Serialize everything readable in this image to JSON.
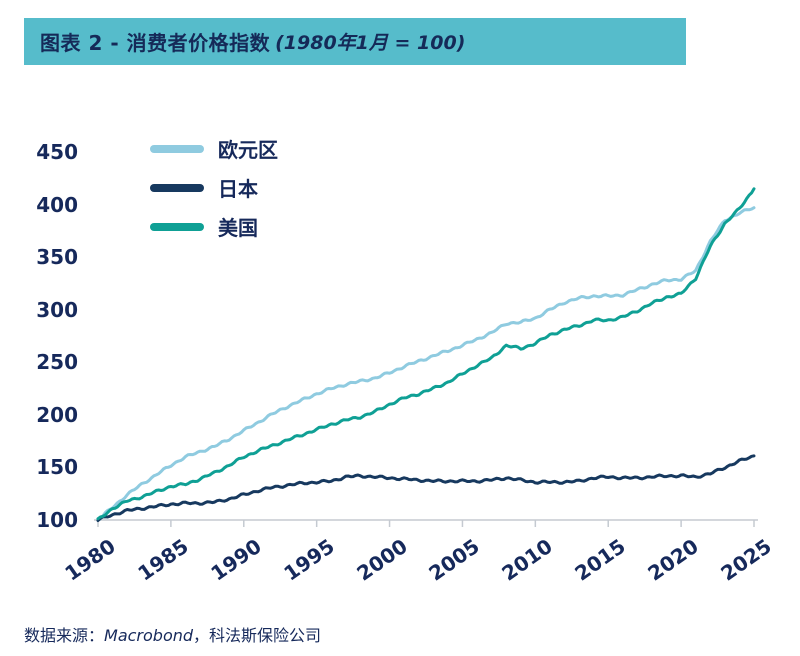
{
  "header": {
    "title_main": "图表 2 - 消费者价格指数",
    "title_paren": "(1980年1月 = 100)"
  },
  "source": {
    "prefix": "数据来源：",
    "vendor": "Macrobond",
    "suffix": "，科法斯保险公司"
  },
  "colors": {
    "banner": "#56bccb",
    "text_navy": "#16295b",
    "axis_gray": "#c5cad1"
  },
  "chart_data": {
    "type": "line",
    "title": "图表 2 - 消费者价格指数(1980年1月 = 100)",
    "xlabel": "",
    "ylabel": "",
    "x_range": [
      1980,
      2025
    ],
    "y_range": [
      100,
      450
    ],
    "y_ticks": [
      100,
      150,
      200,
      250,
      300,
      350,
      400,
      450
    ],
    "x_ticks": [
      1980,
      1985,
      1990,
      1995,
      2000,
      2005,
      2010,
      2015,
      2020,
      2025
    ],
    "grid": false,
    "legend_position": "top-left",
    "years": [
      1980,
      1981,
      1982,
      1983,
      1984,
      1985,
      1986,
      1987,
      1988,
      1989,
      1990,
      1991,
      1992,
      1993,
      1994,
      1995,
      1996,
      1997,
      1998,
      1999,
      2000,
      2001,
      2002,
      2003,
      2004,
      2005,
      2006,
      2007,
      2008,
      2009,
      2010,
      2011,
      2012,
      2013,
      2014,
      2015,
      2016,
      2017,
      2018,
      2019,
      2020,
      2021,
      2022,
      2023,
      2024,
      2025
    ],
    "series": [
      {
        "key": "eurozone",
        "name": "欧元区",
        "color": "#8fcbe0",
        "values": [
          100,
          112,
          124,
          134,
          143,
          152,
          160,
          165,
          170,
          177,
          185,
          193,
          201,
          208,
          214,
          220,
          225,
          229,
          232,
          235,
          240,
          246,
          251,
          256,
          261,
          266,
          272,
          278,
          287,
          288,
          292,
          300,
          307,
          311,
          313,
          313,
          314,
          319,
          324,
          328,
          329,
          337,
          365,
          385,
          392,
          397
        ]
      },
      {
        "key": "japan",
        "name": "日本",
        "color": "#17395f",
        "values": [
          100,
          105,
          109,
          111,
          113,
          115,
          116,
          116,
          117,
          120,
          124,
          128,
          131,
          133,
          135,
          136,
          137,
          141,
          142,
          141,
          140,
          139,
          138,
          137,
          137,
          137,
          137,
          138,
          140,
          138,
          136,
          136,
          136,
          137,
          140,
          141,
          140,
          140,
          141,
          142,
          142,
          141,
          144,
          150,
          156,
          161
        ]
      },
      {
        "key": "us",
        "name": "美国",
        "color": "#0fa095",
        "values": [
          100,
          111,
          118,
          122,
          127,
          132,
          134,
          139,
          145,
          152,
          160,
          166,
          171,
          176,
          181,
          186,
          191,
          195,
          198,
          203,
          210,
          216,
          220,
          225,
          231,
          239,
          247,
          254,
          266,
          263,
          268,
          276,
          281,
          285,
          290,
          290,
          293,
          299,
          306,
          312,
          315,
          330,
          360,
          382,
          396,
          415
        ]
      }
    ]
  }
}
